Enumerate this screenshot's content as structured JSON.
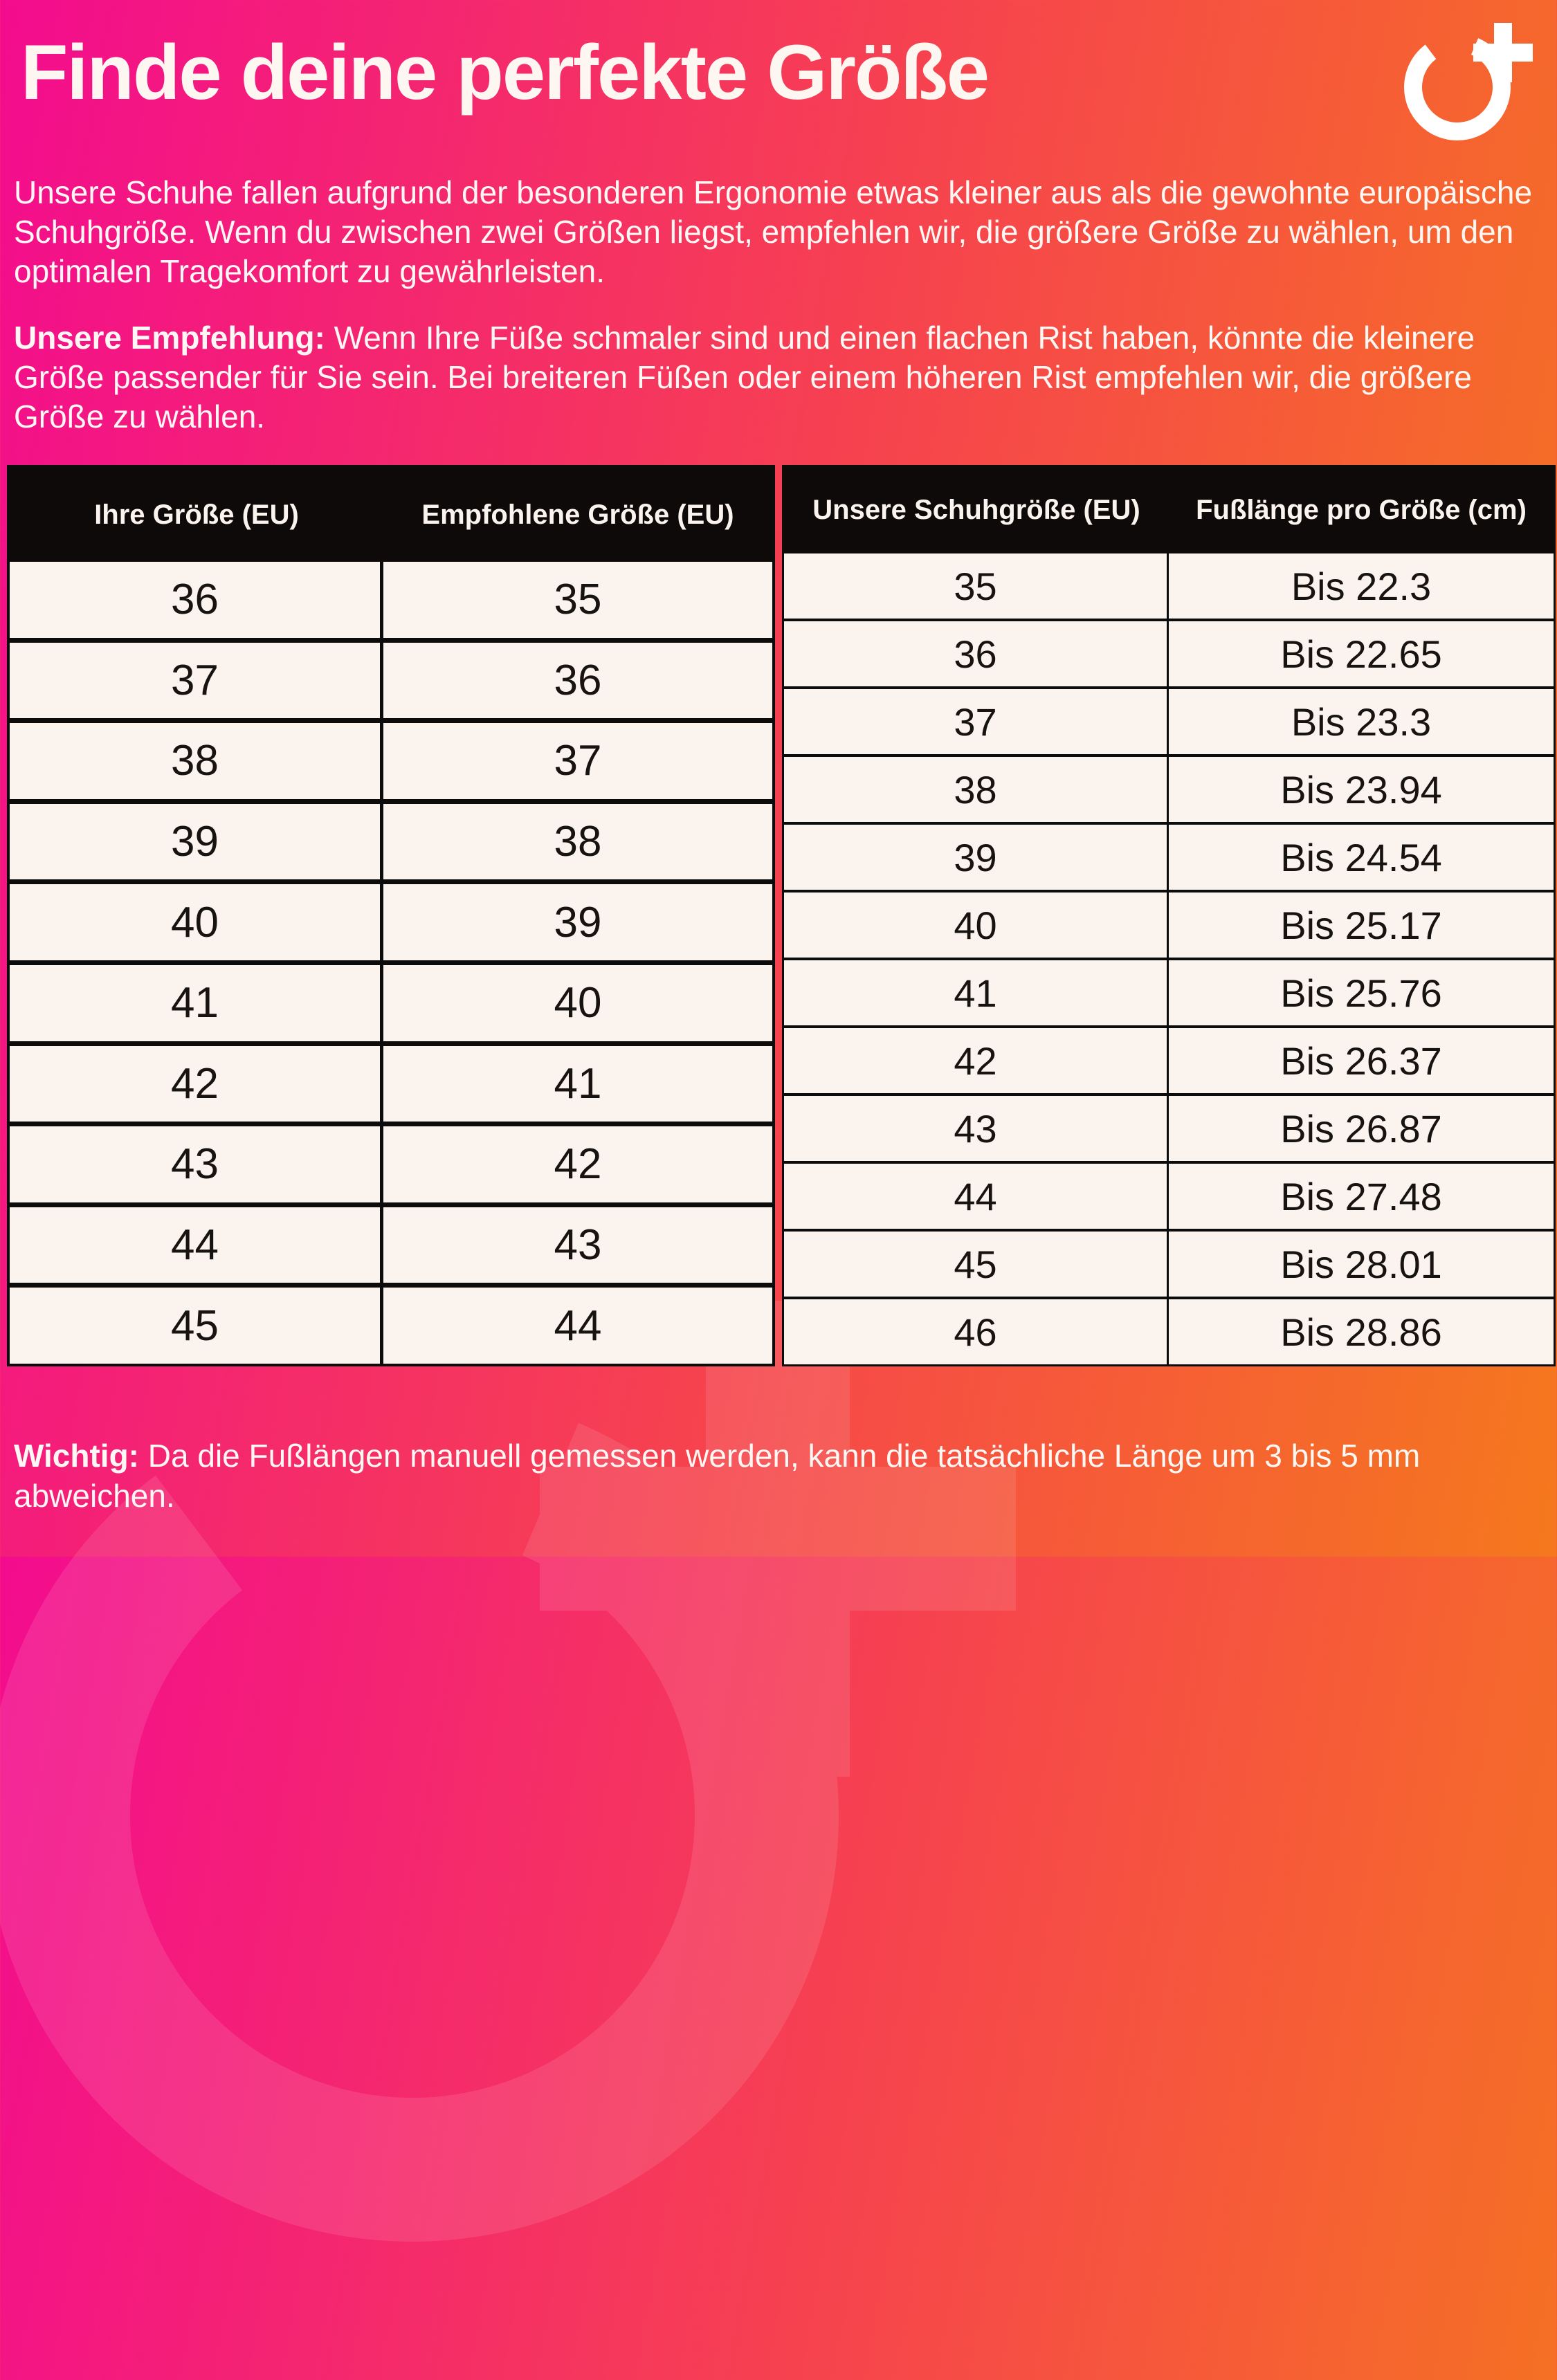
{
  "page": {
    "title": "Finde deine perfekte Größe",
    "intro": "Unsere Schuhe fallen aufgrund der besonderen Ergonomie etwas kleiner aus als die gewohnte europäische Schuhgröße. Wenn du zwischen zwei Größen liegst, empfehlen wir, die größere Größe zu wählen, um den optimalen Tragekomfort zu gewährleisten.",
    "recommendation_label": "Unsere Empfehlung:",
    "recommendation_text": " Wenn Ihre Füße schmaler sind und einen flachen Rist haben, könnte die kleinere Größe passender für Sie sein. Bei breiteren Füßen oder einem höheren Rist empfehlen wir, die größere Größe zu wählen.",
    "note_label": "Wichtig:",
    "note_text": " Da die Fußlängen manuell gemessen werden, kann die tatsächliche Länge um 3 bis 5 mm abweichen."
  },
  "logo": {
    "icon": "circle-plus-brand-logo"
  },
  "colors": {
    "gradient_left": "#f30c8e",
    "gradient_mid": "#f6434e",
    "gradient_right": "#f5781d",
    "table_background": "#fbf4ee",
    "table_header_background": "#0d0a09",
    "table_border": "#0c0c0c",
    "text_light": "#fef7f3",
    "text_dark": "#161310"
  },
  "tables": {
    "size_conversion": {
      "headers": [
        "Ihre Größe (EU)",
        "Empfohlene Größe (EU)"
      ],
      "rows": [
        [
          "36",
          "35"
        ],
        [
          "37",
          "36"
        ],
        [
          "38",
          "37"
        ],
        [
          "39",
          "38"
        ],
        [
          "40",
          "39"
        ],
        [
          "41",
          "40"
        ],
        [
          "42",
          "41"
        ],
        [
          "43",
          "42"
        ],
        [
          "44",
          "43"
        ],
        [
          "45",
          "44"
        ]
      ]
    },
    "foot_length": {
      "headers": [
        "Unsere Schuhgröße (EU)",
        "Fußlänge pro Größe (cm)"
      ],
      "rows": [
        [
          "35",
          "Bis 22.3"
        ],
        [
          "36",
          "Bis 22.65"
        ],
        [
          "37",
          "Bis 23.3"
        ],
        [
          "38",
          "Bis 23.94"
        ],
        [
          "39",
          "Bis 24.54"
        ],
        [
          "40",
          "Bis 25.17"
        ],
        [
          "41",
          "Bis 25.76"
        ],
        [
          "42",
          "Bis 26.37"
        ],
        [
          "43",
          "Bis 26.87"
        ],
        [
          "44",
          "Bis 27.48"
        ],
        [
          "45",
          "Bis 28.01"
        ],
        [
          "46",
          "Bis 28.86"
        ]
      ]
    }
  }
}
